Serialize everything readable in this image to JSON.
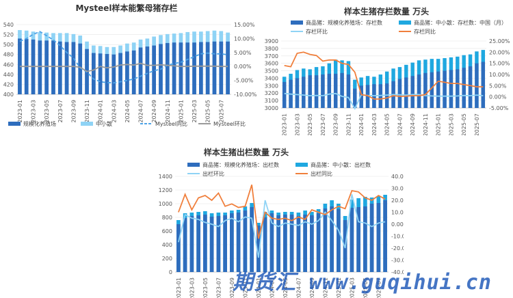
{
  "charts": [
    {
      "id": "c1",
      "type": "bar",
      "title": "Mysteel样本能繁母猪存栏",
      "categories": [
        "2023-01",
        "2023-02",
        "2023-03",
        "2023-04",
        "2023-05",
        "2023-06",
        "2023-07",
        "2023-08",
        "2023-09",
        "2023-10",
        "2023-11",
        "2023-12",
        "2024-01",
        "2024-02",
        "2024-03",
        "2024-04",
        "2024-05",
        "2024-06",
        "2024-07",
        "2024-08",
        "2024-09",
        "2024-10",
        "2024-11",
        "2024-12",
        "2025-01",
        "2025-02",
        "2025-03",
        "2025-04",
        "2025-05",
        "2025-06",
        "2025-07",
        "2025-08"
      ],
      "xticks": [
        "2023-01",
        "2023-03",
        "2023-05",
        "2023-07",
        "2023-09",
        "2023-11",
        "2024-01",
        "2024-03",
        "2024-05",
        "2024-07",
        "2024-09",
        "2024-11",
        "2025-01",
        "2025-03",
        "2025-05",
        "2025-07"
      ],
      "yleft": {
        "min": 400,
        "max": 540,
        "step": 20,
        "labels": [
          "540",
          "520",
          "500",
          "480",
          "460",
          "440",
          "420",
          "400"
        ]
      },
      "yright": {
        "min": -10,
        "max": 15,
        "step": 5,
        "labels": [
          "15.00%",
          "10.00%",
          "5.00%",
          "0.00%",
          "-5.00%",
          "-10.00%"
        ]
      },
      "series": [
        {
          "name": "规模化养殖场",
          "kind": "bar_base",
          "color": "#2e6dbd",
          "values": [
            512,
            511,
            510,
            508,
            508,
            508,
            506,
            505,
            505,
            502,
            491,
            483,
            482,
            481,
            480,
            483,
            486,
            488,
            494,
            496,
            498,
            501,
            503,
            504,
            504,
            504,
            504,
            505,
            505,
            506,
            506,
            506
          ]
        },
        {
          "name": "中小散",
          "kind": "bar_top",
          "color": "#8fd3f5",
          "values": [
            529,
            528,
            526,
            525,
            524,
            523,
            523,
            523,
            521,
            518,
            506,
            498,
            497,
            495,
            495,
            498,
            502,
            504,
            510,
            512,
            516,
            519,
            521,
            522,
            523,
            525,
            526,
            526,
            527,
            528,
            527,
            524
          ]
        },
        {
          "name": "Mysteel同比",
          "kind": "line_right",
          "style": "dashed",
          "color": "#4da3e6",
          "values": [
            9.0,
            10.0,
            11.5,
            12.5,
            11.0,
            9.5,
            7.5,
            5.0,
            3.0,
            -0.5,
            -2.0,
            -4.5,
            -5.5,
            -5.8,
            -5.9,
            -5.5,
            -5.0,
            -4.5,
            -3.5,
            -2.5,
            -1.5,
            -1.0,
            0.5,
            1.0,
            1.5,
            2.5,
            3.5,
            4.5,
            4.8,
            4.5,
            4.5,
            4.2
          ]
        },
        {
          "name": "Mysteel环比",
          "kind": "line_right",
          "style": "solid",
          "color": "#9a9a9a",
          "values": [
            0.0,
            0.0,
            0.0,
            0.0,
            0.0,
            0.0,
            0.0,
            0.0,
            0.0,
            -0.3,
            -1.8,
            -1.3,
            0.0,
            -0.5,
            -0.2,
            0.5,
            0.7,
            0.5,
            1.1,
            0.4,
            0.4,
            0.6,
            0.4,
            0.2,
            0.0,
            0.0,
            0.1,
            0.1,
            0.1,
            0.1,
            0.0,
            0.0
          ]
        }
      ]
    },
    {
      "id": "c2",
      "type": "bar",
      "title": "样本生猪存栏数量 万头",
      "categories": [
        "2023-01",
        "2023-02",
        "2023-03",
        "2023-04",
        "2023-05",
        "2023-06",
        "2023-07",
        "2023-08",
        "2023-09",
        "2023-10",
        "2023-11",
        "2023-12",
        "2024-01",
        "2024-02",
        "2024-03",
        "2024-04",
        "2024-05",
        "2024-06",
        "2024-07",
        "2024-08",
        "2024-09",
        "2024-10",
        "2024-11",
        "2024-12",
        "2025-01",
        "2025-02",
        "2025-03",
        "2025-04",
        "2025-05",
        "2025-06",
        "2025-07",
        "2025-08"
      ],
      "xticks": [
        "2023-01",
        "2023-03",
        "2023-05",
        "2023-07",
        "2023-09",
        "2023-11",
        "2024-01",
        "2024-03",
        "2024-05",
        "2024-07",
        "2024-09",
        "2024-11",
        "2025-01",
        "2025-03",
        "2025-05",
        "2025-07"
      ],
      "yleft": {
        "min": 3000,
        "max": 3900,
        "step": 100,
        "labels": [
          "3900",
          "3800",
          "3700",
          "3600",
          "3500",
          "3400",
          "3300",
          "3200",
          "3100",
          "3000"
        ]
      },
      "yright": {
        "min": -5,
        "max": 25,
        "step": 5,
        "labels": [
          "25.00%",
          "20.00%",
          "15.00%",
          "10.00%",
          "5.00%",
          "0.00%",
          "-5.00%"
        ]
      },
      "series": [
        {
          "name": "商品猪：规模化养殖场：存栏数",
          "kind": "bar_base",
          "color": "#2e6dbd",
          "values": [
            3350,
            3380,
            3400,
            3420,
            3440,
            3440,
            3450,
            3460,
            3460,
            3470,
            3450,
            3260,
            3300,
            3310,
            3320,
            3320,
            3330,
            3360,
            3390,
            3410,
            3430,
            3450,
            3470,
            3480,
            3490,
            3500,
            3510,
            3520,
            3540,
            3560,
            3600,
            3620
          ]
        },
        {
          "name": "商品猪：中小散：存栏数：中国（月）",
          "kind": "bar_top",
          "color": "#1fa8e0",
          "values": [
            3420,
            3460,
            3510,
            3530,
            3520,
            3550,
            3560,
            3600,
            3650,
            3640,
            3630,
            3380,
            3410,
            3430,
            3420,
            3450,
            3490,
            3530,
            3550,
            3580,
            3610,
            3640,
            3650,
            3660,
            3660,
            3670,
            3680,
            3690,
            3710,
            3720,
            3760,
            3780
          ]
        },
        {
          "name": "存栏环比",
          "kind": "line_right",
          "style": "solid",
          "color": "#8fd3f5",
          "values": [
            1.5,
            1.2,
            1.0,
            0.8,
            0.5,
            0.6,
            0.5,
            1.2,
            1.5,
            0.2,
            -0.3,
            -5.3,
            0.9,
            0.6,
            0.5,
            0.6,
            0.8,
            1.0,
            0.9,
            0.8,
            1.0,
            1.0,
            0.5,
            0.4,
            0.3,
            0.3,
            0.3,
            0.4,
            0.6,
            0.5,
            0.8,
            0.5
          ]
        },
        {
          "name": "存栏同比",
          "kind": "line_right",
          "style": "solid",
          "color": "#f07f3c",
          "values": [
            14.0,
            13.5,
            19.5,
            20.0,
            19.0,
            18.5,
            16.0,
            16.5,
            16.5,
            15.0,
            14.5,
            11.0,
            1.0,
            0.5,
            -1.0,
            -1.0,
            -0.5,
            0.5,
            0.2,
            0.3,
            0.5,
            0.5,
            1.0,
            4.0,
            7.0,
            6.5,
            6.0,
            6.0,
            5.5,
            5.0,
            4.5,
            4.5
          ]
        }
      ]
    },
    {
      "id": "c3",
      "type": "bar",
      "title": "样本生猪出栏数量 万头",
      "categories": [
        "2023-01",
        "2023-02",
        "2023-03",
        "2023-04",
        "2023-05",
        "2023-06",
        "2023-07",
        "2023-08",
        "2023-09",
        "2023-10",
        "2023-11",
        "2023-12",
        "2024-01",
        "2024-02",
        "2024-03",
        "2024-04",
        "2024-05",
        "2024-06",
        "2024-07",
        "2024-08",
        "2024-09",
        "2024-10",
        "2024-11",
        "2024-12",
        "2025-01",
        "2025-02",
        "2025-03",
        "2025-04",
        "2025-05",
        "2025-06",
        "2025-07",
        "2025-08"
      ],
      "xticks": [
        "2023-01",
        "2023-03",
        "2023-05",
        "2023-07",
        "2023-09",
        "2023-11",
        "2024-01",
        "2024-03",
        "2024-05",
        "2024-07",
        "2024-09",
        "2024-11",
        "2025-01",
        "2025-03",
        "2025-05",
        "2025-07"
      ],
      "yleft": {
        "min": 0,
        "max": 1400,
        "step": 200,
        "labels": [
          "1400",
          "1200",
          "1000",
          "800",
          "600",
          "400",
          "200",
          "0"
        ]
      },
      "yright": {
        "min": -40,
        "max": 40,
        "step": 10,
        "labels": [
          "40.00%",
          "30.00%",
          "20.00%",
          "10.00%",
          "0.00%",
          "-10.00%",
          "-20.00%",
          "-30.00%",
          "-40.00%"
        ]
      },
      "series": [
        {
          "name": "商品猪：规模化养殖场：出栏数",
          "kind": "bar_base",
          "color": "#2e6dbd",
          "values": [
            700,
            790,
            820,
            830,
            840,
            810,
            820,
            830,
            860,
            870,
            900,
            950,
            680,
            800,
            860,
            830,
            840,
            840,
            820,
            840,
            830,
            860,
            930,
            960,
            920,
            760,
            940,
            950,
            960,
            1000,
            1010,
            1050
          ]
        },
        {
          "name": "商品猪：中小散：出栏数",
          "kind": "bar_top",
          "color": "#1fa8e0",
          "values": [
            760,
            860,
            870,
            880,
            890,
            860,
            870,
            870,
            900,
            910,
            960,
            1010,
            720,
            880,
            900,
            870,
            880,
            880,
            870,
            900,
            880,
            920,
            1000,
            1050,
            1000,
            820,
            1060,
            1080,
            1100,
            1090,
            1110,
            1130
          ]
        },
        {
          "name": "出栏环比",
          "kind": "line_right",
          "style": "solid",
          "color": "#8fd3f5",
          "values": [
            -15.0,
            8.0,
            5.0,
            4.0,
            1.5,
            0.0,
            -2.0,
            3.0,
            5.0,
            2.0,
            6.0,
            5.0,
            -28.0,
            20.0,
            1.0,
            -2.0,
            1.0,
            0.0,
            -1.0,
            2.0,
            0.0,
            3.0,
            10.0,
            3.0,
            -5.0,
            -20.0,
            25.0,
            2.0,
            1.0,
            -2.0,
            1.0,
            2.0
          ]
        },
        {
          "name": "出栏同比",
          "kind": "line_right",
          "style": "solid",
          "color": "#f07f3c",
          "values": [
            10.0,
            25.0,
            12.0,
            22.0,
            24.0,
            20.0,
            26.0,
            15.0,
            17.0,
            14.0,
            15.0,
            33.0,
            -12.0,
            10.0,
            5.0,
            4.0,
            5.0,
            3.0,
            6.0,
            4.0,
            12.0,
            10.0,
            8.0,
            12.0,
            15.0,
            13.0,
            28.0,
            27.0,
            22.0,
            20.0,
            24.0,
            21.0
          ]
        }
      ]
    }
  ],
  "watermark": "期货汇 www.guqihui.cn"
}
